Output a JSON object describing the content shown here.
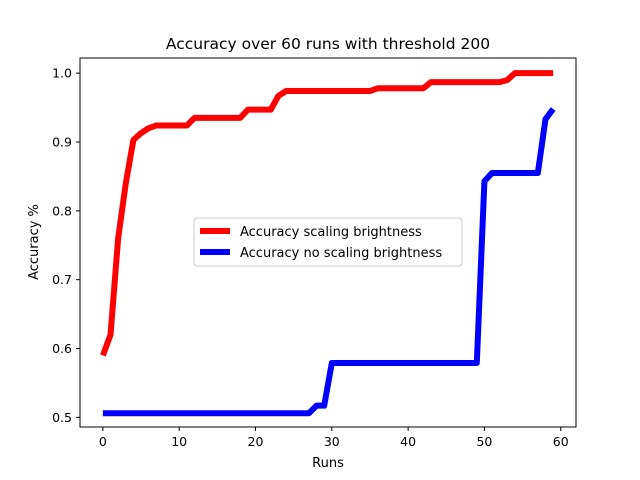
{
  "chart_data": {
    "type": "line",
    "title": "Accuracy over 60 runs with threshold 200",
    "xlabel": "Runs",
    "ylabel": "Accuracy %",
    "xlim": [
      -3.0,
      62.0
    ],
    "ylim": [
      0.486,
      1.022
    ],
    "xticks": [
      0,
      10,
      20,
      30,
      40,
      50,
      60
    ],
    "yticks": [
      0.5,
      0.6,
      0.7,
      0.8,
      0.9,
      1.0
    ],
    "xtick_labels": [
      "0",
      "10",
      "20",
      "30",
      "40",
      "50",
      "60"
    ],
    "ytick_labels": [
      "0.5",
      "0.6",
      "0.7",
      "0.8",
      "0.9",
      "1.0"
    ],
    "grid": false,
    "legend_position": "center",
    "series": [
      {
        "name": "Accuracy scaling brightness",
        "color": "#ff0000",
        "x": [
          0,
          1,
          2,
          3,
          4,
          5,
          6,
          7,
          8,
          9,
          10,
          11,
          12,
          13,
          14,
          15,
          16,
          17,
          18,
          19,
          20,
          21,
          22,
          23,
          24,
          25,
          26,
          27,
          28,
          29,
          30,
          31,
          32,
          33,
          34,
          35,
          36,
          37,
          38,
          39,
          40,
          41,
          42,
          43,
          44,
          45,
          46,
          47,
          48,
          49,
          50,
          51,
          52,
          53,
          54,
          55,
          56,
          57,
          58,
          59
        ],
        "y": [
          0.59,
          0.62,
          0.76,
          0.84,
          0.903,
          0.913,
          0.92,
          0.924,
          0.924,
          0.924,
          0.924,
          0.924,
          0.935,
          0.935,
          0.935,
          0.935,
          0.935,
          0.935,
          0.935,
          0.947,
          0.947,
          0.947,
          0.947,
          0.967,
          0.974,
          0.974,
          0.974,
          0.974,
          0.974,
          0.974,
          0.974,
          0.974,
          0.974,
          0.974,
          0.974,
          0.974,
          0.978,
          0.978,
          0.978,
          0.978,
          0.978,
          0.978,
          0.978,
          0.987,
          0.987,
          0.987,
          0.987,
          0.987,
          0.987,
          0.987,
          0.987,
          0.987,
          0.987,
          0.99,
          1.0,
          1.0,
          1.0,
          1.0,
          1.0,
          1.0
        ]
      },
      {
        "name": "Accuracy no scaling brightness",
        "color": "#0000ff",
        "x": [
          0,
          1,
          2,
          3,
          4,
          5,
          6,
          7,
          8,
          9,
          10,
          11,
          12,
          13,
          14,
          15,
          16,
          17,
          18,
          19,
          20,
          21,
          22,
          23,
          24,
          25,
          26,
          27,
          28,
          29,
          30,
          31,
          32,
          33,
          34,
          35,
          36,
          37,
          38,
          39,
          40,
          41,
          42,
          43,
          44,
          45,
          46,
          47,
          48,
          49,
          50,
          51,
          52,
          53,
          54,
          55,
          56,
          57,
          58,
          59
        ],
        "y": [
          0.506,
          0.506,
          0.506,
          0.506,
          0.506,
          0.506,
          0.506,
          0.506,
          0.506,
          0.506,
          0.506,
          0.506,
          0.506,
          0.506,
          0.506,
          0.506,
          0.506,
          0.506,
          0.506,
          0.506,
          0.506,
          0.506,
          0.506,
          0.506,
          0.506,
          0.506,
          0.506,
          0.506,
          0.517,
          0.517,
          0.579,
          0.579,
          0.579,
          0.579,
          0.579,
          0.579,
          0.579,
          0.579,
          0.579,
          0.579,
          0.579,
          0.579,
          0.579,
          0.579,
          0.579,
          0.579,
          0.579,
          0.579,
          0.579,
          0.579,
          0.843,
          0.855,
          0.855,
          0.855,
          0.855,
          0.855,
          0.855,
          0.855,
          0.933,
          0.948
        ]
      }
    ]
  }
}
